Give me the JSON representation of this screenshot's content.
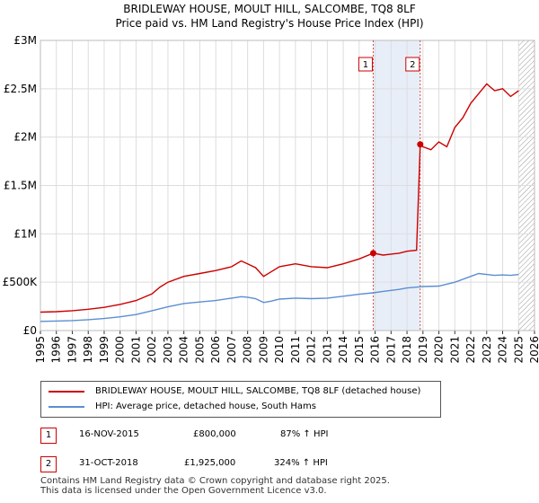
{
  "header": {
    "title": "BRIDLEWAY HOUSE, MOULT HILL, SALCOMBE, TQ8 8LF",
    "subtitle": "Price paid vs. HM Land Registry's House Price Index (HPI)"
  },
  "chart_data": {
    "type": "line",
    "title": "BRIDLEWAY HOUSE, MOULT HILL, SALCOMBE, TQ8 8LF",
    "subtitle": "Price paid vs. HM Land Registry's House Price Index (HPI)",
    "xlabel": "",
    "ylabel": "",
    "xlim": [
      1995,
      2026
    ],
    "ylim": [
      0,
      3000000
    ],
    "x_ticks": [
      1995,
      1996,
      1997,
      1998,
      1999,
      2000,
      2001,
      2002,
      2003,
      2004,
      2005,
      2006,
      2007,
      2008,
      2009,
      2010,
      2011,
      2012,
      2013,
      2014,
      2015,
      2016,
      2017,
      2018,
      2019,
      2020,
      2021,
      2022,
      2023,
      2024,
      2025,
      2026
    ],
    "y_ticks": [
      {
        "value": 0,
        "label": "£0"
      },
      {
        "value": 500000,
        "label": "£500K"
      },
      {
        "value": 1000000,
        "label": "£1M"
      },
      {
        "value": 1500000,
        "label": "£1.5M"
      },
      {
        "value": 2000000,
        "label": "£2M"
      },
      {
        "value": 2500000,
        "label": "£2.5M"
      },
      {
        "value": 3000000,
        "label": "£3M"
      }
    ],
    "grid": true,
    "shaded_region": {
      "from": 2015.88,
      "to": 2018.83,
      "color": "#e8eef8"
    },
    "forecast_hatch_from": 2025.0,
    "series": [
      {
        "name": "BRIDLEWAY HOUSE, MOULT HILL, SALCOMBE, TQ8 8LF (detached house)",
        "color": "#cc0000",
        "points": [
          [
            1995.0,
            190000
          ],
          [
            1996.0,
            195000
          ],
          [
            1997.0,
            205000
          ],
          [
            1998.0,
            220000
          ],
          [
            1999.0,
            240000
          ],
          [
            2000.0,
            270000
          ],
          [
            2001.0,
            310000
          ],
          [
            2002.0,
            380000
          ],
          [
            2002.5,
            450000
          ],
          [
            2003.0,
            500000
          ],
          [
            2004.0,
            560000
          ],
          [
            2005.0,
            590000
          ],
          [
            2006.0,
            620000
          ],
          [
            2007.0,
            660000
          ],
          [
            2007.6,
            720000
          ],
          [
            2008.0,
            690000
          ],
          [
            2008.5,
            650000
          ],
          [
            2009.0,
            560000
          ],
          [
            2009.5,
            610000
          ],
          [
            2010.0,
            660000
          ],
          [
            2011.0,
            690000
          ],
          [
            2012.0,
            660000
          ],
          [
            2013.0,
            650000
          ],
          [
            2014.0,
            690000
          ],
          [
            2015.0,
            740000
          ],
          [
            2015.88,
            800000
          ],
          [
            2016.5,
            780000
          ],
          [
            2017.0,
            790000
          ],
          [
            2017.5,
            800000
          ],
          [
            2018.0,
            820000
          ],
          [
            2018.6,
            830000
          ],
          [
            2018.83,
            1925000
          ],
          [
            2019.0,
            1900000
          ],
          [
            2019.5,
            1870000
          ],
          [
            2020.0,
            1950000
          ],
          [
            2020.5,
            1900000
          ],
          [
            2021.0,
            2100000
          ],
          [
            2021.5,
            2200000
          ],
          [
            2022.0,
            2350000
          ],
          [
            2022.5,
            2450000
          ],
          [
            2023.0,
            2550000
          ],
          [
            2023.5,
            2480000
          ],
          [
            2024.0,
            2500000
          ],
          [
            2024.5,
            2420000
          ],
          [
            2025.0,
            2480000
          ]
        ]
      },
      {
        "name": "HPI: Average price, detached house, South Hams",
        "color": "#5b8fd0",
        "points": [
          [
            1995.0,
            95000
          ],
          [
            1996.0,
            98000
          ],
          [
            1997.0,
            103000
          ],
          [
            1998.0,
            112000
          ],
          [
            1999.0,
            124000
          ],
          [
            2000.0,
            142000
          ],
          [
            2001.0,
            165000
          ],
          [
            2002.0,
            205000
          ],
          [
            2003.0,
            245000
          ],
          [
            2004.0,
            280000
          ],
          [
            2005.0,
            295000
          ],
          [
            2006.0,
            310000
          ],
          [
            2007.0,
            335000
          ],
          [
            2007.6,
            350000
          ],
          [
            2008.0,
            345000
          ],
          [
            2008.5,
            330000
          ],
          [
            2009.0,
            290000
          ],
          [
            2009.5,
            305000
          ],
          [
            2010.0,
            325000
          ],
          [
            2011.0,
            335000
          ],
          [
            2012.0,
            330000
          ],
          [
            2013.0,
            335000
          ],
          [
            2014.0,
            355000
          ],
          [
            2015.0,
            375000
          ],
          [
            2015.88,
            390000
          ],
          [
            2016.5,
            405000
          ],
          [
            2017.0,
            415000
          ],
          [
            2017.5,
            425000
          ],
          [
            2018.0,
            440000
          ],
          [
            2018.83,
            452000
          ],
          [
            2019.0,
            455000
          ],
          [
            2020.0,
            460000
          ],
          [
            2021.0,
            500000
          ],
          [
            2022.0,
            560000
          ],
          [
            2022.5,
            590000
          ],
          [
            2023.0,
            580000
          ],
          [
            2023.5,
            570000
          ],
          [
            2024.0,
            575000
          ],
          [
            2024.5,
            570000
          ],
          [
            2025.0,
            580000
          ]
        ]
      }
    ],
    "sales": [
      {
        "id": "1",
        "x": 2015.88,
        "value": 800000
      },
      {
        "id": "2",
        "x": 2018.83,
        "value": 1925000
      }
    ]
  },
  "legend": {
    "items": [
      {
        "label": "BRIDLEWAY HOUSE, MOULT HILL, SALCOMBE, TQ8 8LF (detached house)",
        "color": "#cc0000"
      },
      {
        "label": "HPI: Average price, detached house, South Hams",
        "color": "#5b8fd0"
      }
    ]
  },
  "transactions": [
    {
      "id": "1",
      "date": "16-NOV-2015",
      "price": "£800,000",
      "hpi": "87% ↑ HPI"
    },
    {
      "id": "2",
      "date": "31-OCT-2018",
      "price": "£1,925,000",
      "hpi": "324% ↑ HPI"
    }
  ],
  "footer": {
    "line1": "Contains HM Land Registry data © Crown copyright and database right 2025.",
    "line2": "This data is licensed under the Open Government Licence v3.0."
  }
}
